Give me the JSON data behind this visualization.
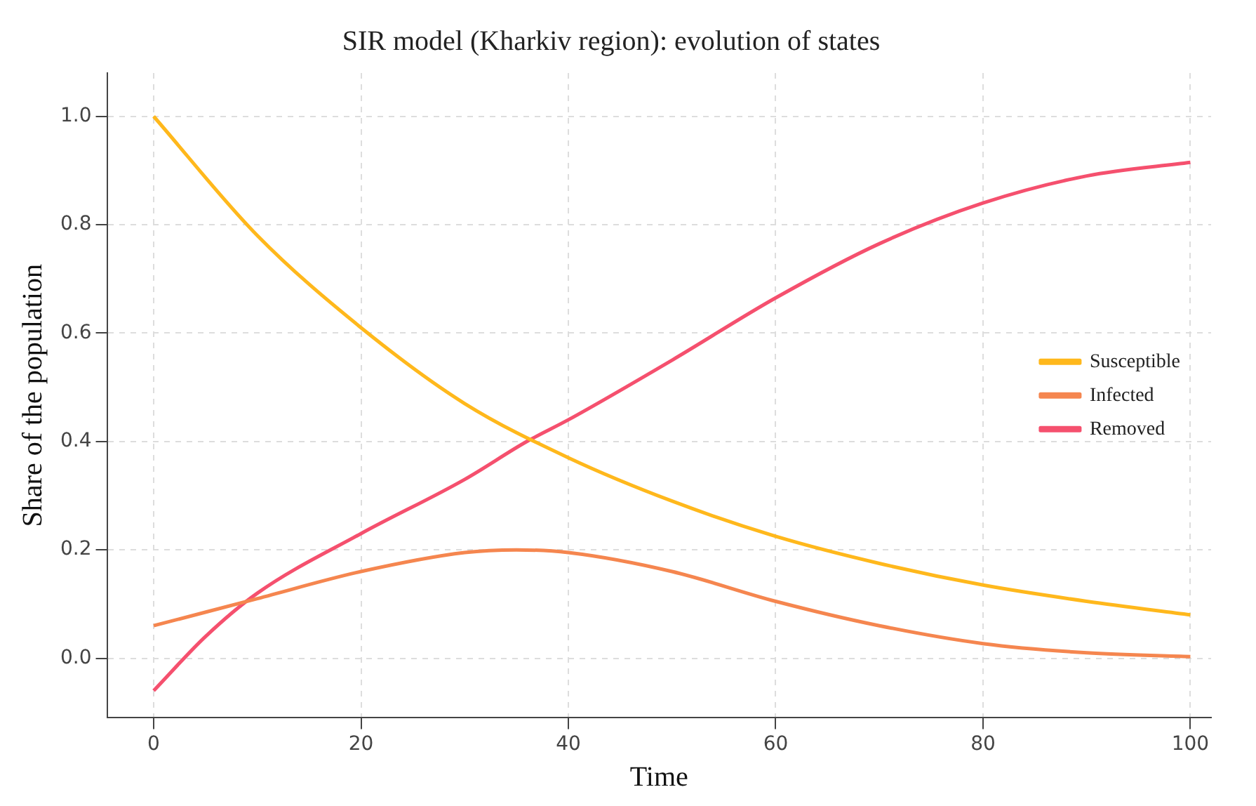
{
  "chart_data": {
    "type": "line",
    "title": "SIR model (Kharkiv region): evolution of states",
    "xlabel": "Time",
    "ylabel": "Share of the population",
    "xlim": [
      -4.5,
      102
    ],
    "ylim": [
      -0.11,
      1.08
    ],
    "xticks": [
      0,
      20,
      40,
      60,
      80,
      100
    ],
    "yticks": [
      {
        "value": 0,
        "label": "0.0"
      },
      {
        "value": 0.2,
        "label": "0.2"
      },
      {
        "value": 0.4,
        "label": "0.4"
      },
      {
        "value": 0.6,
        "label": "0.6"
      },
      {
        "value": 0.8,
        "label": "0.8"
      },
      {
        "value": 1,
        "label": "1.0"
      }
    ],
    "grid": true,
    "legend": "right",
    "marker": "none",
    "line_style": "solid",
    "series": [
      {
        "name": "Susceptible",
        "color": "#ffb81c",
        "x": [
          0,
          10,
          20,
          30,
          40,
          50,
          60,
          70,
          80,
          90,
          100
        ],
        "values": [
          1.0,
          0.78,
          0.61,
          0.47,
          0.37,
          0.29,
          0.225,
          0.175,
          0.135,
          0.105,
          0.08
        ]
      },
      {
        "name": "Infected",
        "color": "#f5864f",
        "x": [
          0,
          10,
          20,
          30,
          35,
          40,
          50,
          60,
          70,
          80,
          90,
          100
        ],
        "values": [
          0.06,
          0.11,
          0.16,
          0.195,
          0.2,
          0.195,
          0.16,
          0.105,
          0.06,
          0.027,
          0.01,
          0.003
        ]
      },
      {
        "name": "Removed",
        "color": "#f5506e",
        "x": [
          0,
          5,
          10,
          20,
          30,
          36,
          40,
          50,
          60,
          70,
          80,
          90,
          100
        ],
        "values": [
          -0.06,
          0.04,
          0.12,
          0.23,
          0.33,
          0.4,
          0.44,
          0.55,
          0.665,
          0.765,
          0.84,
          0.89,
          0.915
        ]
      }
    ]
  }
}
